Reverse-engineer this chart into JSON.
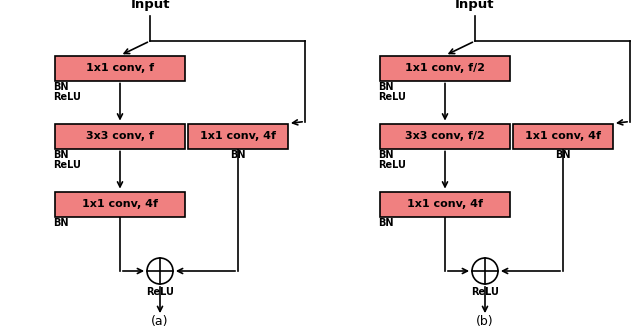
{
  "bg_color": "#ffffff",
  "box_color": "#f08080",
  "box_edge_color": "#000000",
  "lw": 1.2,
  "fig_width": 6.4,
  "fig_height": 3.36,
  "diagrams": [
    {
      "label": "(a)",
      "input_text": "Input",
      "box_texts": [
        "1x1 conv, f",
        "3x3 conv, f",
        "1x1 conv, 4f",
        "1x1 conv, 4f"
      ]
    },
    {
      "label": "(b)",
      "input_text": "Input",
      "box_texts": [
        "1x1 conv, f/2",
        "3x3 conv, f/2",
        "1x1 conv, 4f",
        "1x1 conv, 4f"
      ]
    }
  ]
}
